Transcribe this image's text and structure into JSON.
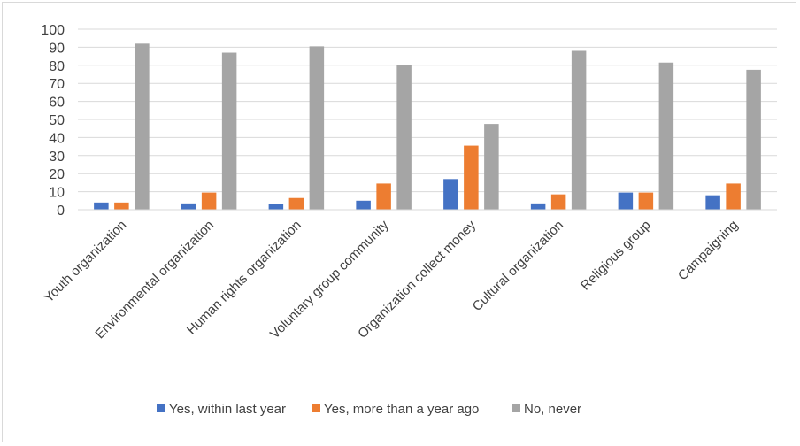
{
  "chart_data": {
    "type": "bar",
    "categories": [
      "Youth organization",
      "Environmental organization",
      "Human rights organization",
      "Voluntary group community",
      "Organization collect money",
      "Cultural organization",
      "Religious group",
      "Campaigning"
    ],
    "series": [
      {
        "name": "Yes, within last year",
        "color": "#4472C4",
        "values": [
          4,
          3.5,
          3,
          5,
          17,
          3.5,
          9.5,
          8
        ]
      },
      {
        "name": "Yes, more than a year ago",
        "color": "#ED7D31",
        "values": [
          4,
          9.5,
          6.5,
          14.5,
          35.5,
          8.5,
          9.5,
          14.5
        ]
      },
      {
        "name": "No, never",
        "color": "#A5A5A5",
        "values": [
          92,
          87,
          90.5,
          80,
          47.5,
          88,
          81.5,
          77.5
        ]
      }
    ],
    "yticks": [
      "0",
      "10",
      "20",
      "30",
      "40",
      "50",
      "60",
      "70",
      "80",
      "90",
      "100"
    ],
    "ylim": [
      0,
      100
    ],
    "grid": true,
    "legend_position": "bottom"
  }
}
